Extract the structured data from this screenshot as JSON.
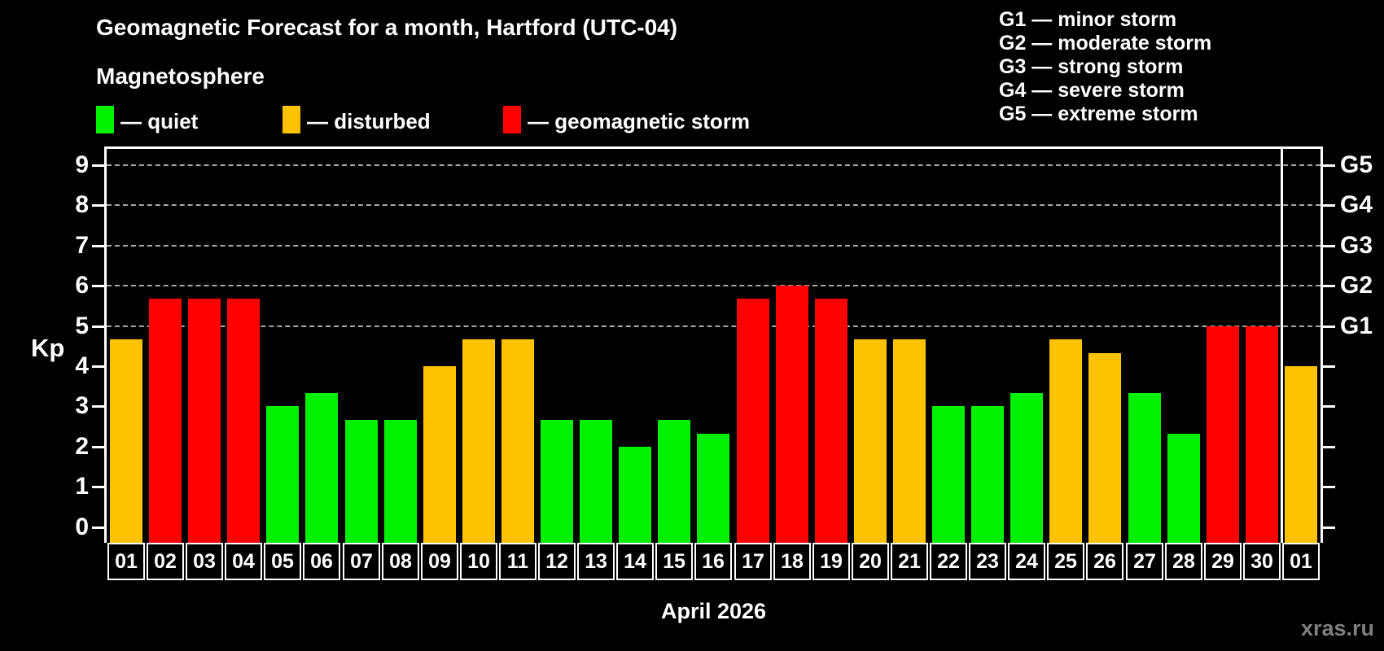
{
  "header": {
    "title": "Geomagnetic Forecast for a month, Hartford (UTC-04)",
    "subtitle": "Magnetosphere"
  },
  "legend": {
    "items": [
      {
        "key": "quiet",
        "label": "— quiet",
        "color": "#00f000"
      },
      {
        "key": "disturbed",
        "label": "— disturbed",
        "color": "#ffc200"
      },
      {
        "key": "storm",
        "label": "— geomagnetic storm",
        "color": "#ff0000"
      }
    ]
  },
  "storm_scale_legend": {
    "items": [
      "G1 — minor storm",
      "G2 — moderate storm",
      "G3 — strong storm",
      "G4 — severe storm",
      "G5 — extreme storm"
    ]
  },
  "watermark": "xras.ru",
  "chart_data": {
    "type": "bar",
    "title": "Geomagnetic Forecast for a month, Hartford (UTC-04)",
    "x_axis_title": "April 2026",
    "y_axis_label": "Kp",
    "ylim": [
      -0.39,
      9.4
    ],
    "y_ticks": [
      0,
      1,
      2,
      3,
      4,
      5,
      6,
      7,
      8,
      9
    ],
    "grid_values": [
      5,
      6,
      7,
      8,
      9
    ],
    "grid_style": "dashed horizontal",
    "right_axis_labels": [
      {
        "value": 5,
        "label": "G1"
      },
      {
        "value": 6,
        "label": "G2"
      },
      {
        "value": 7,
        "label": "G3"
      },
      {
        "value": 8,
        "label": "G4"
      },
      {
        "value": 9,
        "label": "G5"
      }
    ],
    "categories": [
      "01",
      "02",
      "03",
      "04",
      "05",
      "06",
      "07",
      "08",
      "09",
      "10",
      "11",
      "12",
      "13",
      "14",
      "15",
      "16",
      "17",
      "18",
      "19",
      "20",
      "21",
      "22",
      "23",
      "24",
      "25",
      "26",
      "27",
      "28",
      "29",
      "30",
      "01"
    ],
    "values": [
      4.67,
      5.67,
      5.67,
      5.67,
      3.0,
      3.33,
      2.67,
      2.67,
      4.0,
      4.67,
      4.67,
      2.67,
      2.67,
      2.0,
      2.67,
      2.33,
      5.67,
      6.0,
      5.67,
      4.67,
      4.67,
      3.0,
      3.0,
      3.33,
      4.67,
      4.33,
      3.33,
      2.33,
      5.0,
      5.0,
      4.0
    ],
    "statuses": [
      "disturbed",
      "storm",
      "storm",
      "storm",
      "quiet",
      "quiet",
      "quiet",
      "quiet",
      "disturbed",
      "disturbed",
      "disturbed",
      "quiet",
      "quiet",
      "quiet",
      "quiet",
      "quiet",
      "storm",
      "storm",
      "storm",
      "disturbed",
      "disturbed",
      "quiet",
      "quiet",
      "quiet",
      "disturbed",
      "disturbed",
      "quiet",
      "quiet",
      "storm",
      "storm",
      "disturbed"
    ],
    "colors": {
      "quiet": "#00f000",
      "disturbed": "#ffc200",
      "storm": "#ff0000"
    },
    "month_separator_index": 30,
    "legend_position": "top-left"
  }
}
